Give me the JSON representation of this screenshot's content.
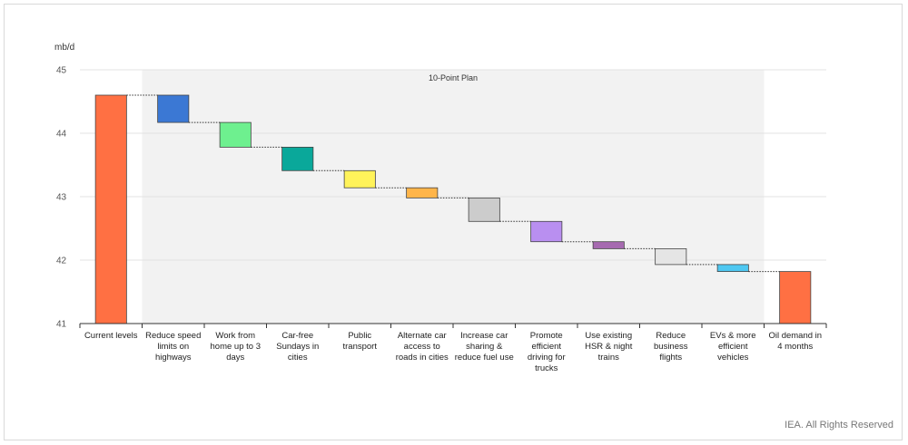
{
  "chart_data": {
    "type": "waterfall",
    "ylabel": "mb/d",
    "ylim": [
      41,
      45
    ],
    "yticks": [
      41,
      42,
      43,
      44,
      45
    ],
    "grid": true,
    "highlight_band_label": "10-Point Plan",
    "categories": [
      "Current levels",
      "Reduce speed limits on highways",
      "Work from home up to 3 days",
      "Car-free Sundays in cities",
      "Public transport",
      "Alternate car access to roads in cities",
      "Increase car sharing & reduce fuel use",
      "Promote efficient driving for trucks",
      "Use existing HSR & night trains",
      "Reduce business flights",
      "EVs & more efficient vehicles",
      "Oil demand in 4 months"
    ],
    "category_lines": [
      [
        "Current levels"
      ],
      [
        "Reduce speed",
        "limits on",
        "highways"
      ],
      [
        "Work from",
        "home up to 3",
        "days"
      ],
      [
        "Car-free",
        "Sundays in",
        "cities"
      ],
      [
        "Public",
        "transport"
      ],
      [
        "Alternate car",
        "access to",
        "roads in cities"
      ],
      [
        "Increase car",
        "sharing &",
        "reduce fuel use"
      ],
      [
        "Promote",
        "efficient",
        "driving for",
        "trucks"
      ],
      [
        "Use existing",
        "HSR & night",
        "trains"
      ],
      [
        "Reduce",
        "business",
        "flights"
      ],
      [
        "EVs & more",
        "efficient",
        "vehicles"
      ],
      [
        "Oil demand in",
        "4 months"
      ]
    ],
    "bars": [
      {
        "start": 41.0,
        "end": 44.6,
        "color": "#ff7043"
      },
      {
        "start": 44.6,
        "end": 44.17,
        "color": "#3b78d4"
      },
      {
        "start": 44.17,
        "end": 43.78,
        "color": "#6ef08f"
      },
      {
        "start": 43.78,
        "end": 43.41,
        "color": "#0aa89a"
      },
      {
        "start": 43.41,
        "end": 43.14,
        "color": "#fff35a"
      },
      {
        "start": 43.14,
        "end": 42.98,
        "color": "#ffb54a"
      },
      {
        "start": 42.98,
        "end": 42.61,
        "color": "#cccccc"
      },
      {
        "start": 42.61,
        "end": 42.29,
        "color": "#b98ff0"
      },
      {
        "start": 42.29,
        "end": 42.18,
        "color": "#a66ab0"
      },
      {
        "start": 42.18,
        "end": 41.93,
        "color": "#e5e5e5"
      },
      {
        "start": 41.93,
        "end": 41.82,
        "color": "#4fc8f2"
      },
      {
        "start": 41.0,
        "end": 41.82,
        "color": "#ff7043"
      }
    ]
  },
  "footer": {
    "credit": "IEA. All Rights Reserved"
  }
}
